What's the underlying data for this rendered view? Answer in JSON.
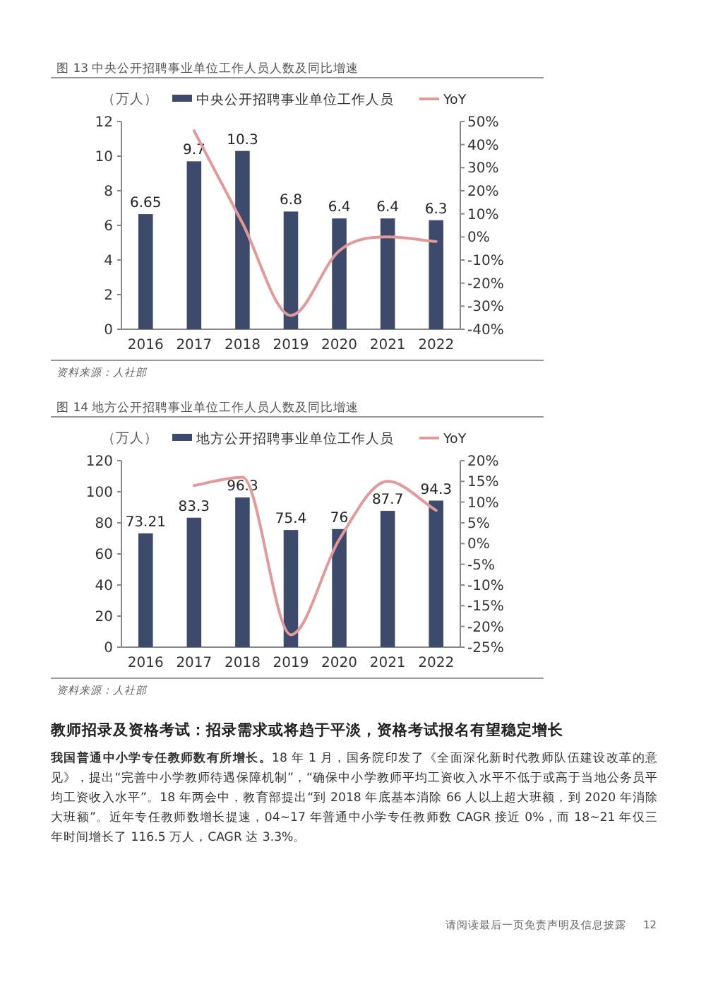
{
  "chart_data": [
    {
      "type": "bar",
      "title": "图 13  中央公开招聘事业单位工作人员人数及同比增速",
      "ylabel": "（万人）",
      "legend": "top",
      "grid": false,
      "marker": "none",
      "categories": [
        "2016",
        "2017",
        "2018",
        "2019",
        "2020",
        "2021",
        "2022"
      ],
      "ylim": [
        0,
        12
      ],
      "yticks": [
        0,
        2,
        4,
        6,
        8,
        10,
        12
      ],
      "y2lim": [
        -40,
        50
      ],
      "y2ticks": [
        {
          "value": -40,
          "label": "-40%"
        },
        {
          "value": -30,
          "label": "-30%"
        },
        {
          "value": -20,
          "label": "-20%"
        },
        {
          "value": -10,
          "label": "-10%"
        },
        {
          "value": 0,
          "label": "0%"
        },
        {
          "value": 10,
          "label": "10%"
        },
        {
          "value": 20,
          "label": "20%"
        },
        {
          "value": 30,
          "label": "30%"
        },
        {
          "value": 40,
          "label": "40%"
        },
        {
          "value": 50,
          "label": "50%"
        }
      ],
      "series": [
        {
          "name": "中央公开招聘事业单位工作人员",
          "color": "#3d4a6b",
          "values": [
            6.65,
            9.7,
            10.3,
            6.8,
            6.4,
            6.4,
            6.3
          ],
          "value_labels": [
            "6.65",
            "9.7",
            "10.3",
            "6.8",
            "6.4",
            "6.4",
            "6.3"
          ]
        },
        {
          "type": "line",
          "name": "YoY",
          "color": "#e09a9a",
          "axis": "y2",
          "values": [
            null,
            46,
            6,
            -34,
            -6,
            0,
            -2
          ]
        }
      ],
      "annotations": [
        "资料来源：人社部"
      ]
    },
    {
      "type": "bar",
      "title": "图 14  地方公开招聘事业单位工作人员人数及同比增速",
      "ylabel": "（万人）",
      "legend": "top",
      "grid": false,
      "marker": "none",
      "categories": [
        "2016",
        "2017",
        "2018",
        "2019",
        "2020",
        "2021",
        "2022"
      ],
      "ylim": [
        0,
        120
      ],
      "yticks": [
        0,
        20,
        40,
        60,
        80,
        100,
        120
      ],
      "y2lim": [
        -25,
        20
      ],
      "y2ticks": [
        {
          "value": -25,
          "label": "-25%"
        },
        {
          "value": -20,
          "label": "-20%"
        },
        {
          "value": -15,
          "label": "-15%"
        },
        {
          "value": -10,
          "label": "-10%"
        },
        {
          "value": -5,
          "label": "-5%"
        },
        {
          "value": 0,
          "label": "0%"
        },
        {
          "value": 5,
          "label": "5%"
        },
        {
          "value": 10,
          "label": "10%"
        },
        {
          "value": 15,
          "label": "15%"
        },
        {
          "value": 20,
          "label": "20%"
        }
      ],
      "series": [
        {
          "name": "地方公开招聘事业单位工作人员",
          "color": "#3d4a6b",
          "values": [
            73.21,
            83.3,
            96.3,
            75.4,
            76,
            87.7,
            94.3
          ],
          "value_labels": [
            "73.21",
            "83.3",
            "96.3",
            "75.4",
            "76",
            "87.7",
            "94.3"
          ]
        },
        {
          "type": "line",
          "name": "YoY",
          "color": "#e09a9a",
          "axis": "y2",
          "values": [
            null,
            14,
            16,
            -22,
            1,
            15,
            8
          ]
        }
      ],
      "annotations": [
        "资料来源：人社部",
        "教师招录及资格考试：招录需求或将趋于平淡，资格考试报名有望稳定增长",
        "我国普通中小学专任教师数有所增长。",
        "18 年 1 月，国务院印发了《全面深化新时代教师队伍建设改革的意见》，提出“完善中小学教师待遇保障机制”，“确保中小学教师平均工资收入水平不低于或高于当地公务员平均工资收入水平”。18 年两会中，教育部提出“到 2018 年底基本消除 66 人以上超大班额，到 2020 年消除大班额”。近年专任教师数增长提速，04~17 年普通中小学专任教师数 CAGR 接近 0%，而 18~21 年仅三年时间增长了 116.5 万人，CAGR 达 3.3%。",
        "请阅读最后一页免责声明及信息披露",
        "12"
      ]
    }
  ]
}
